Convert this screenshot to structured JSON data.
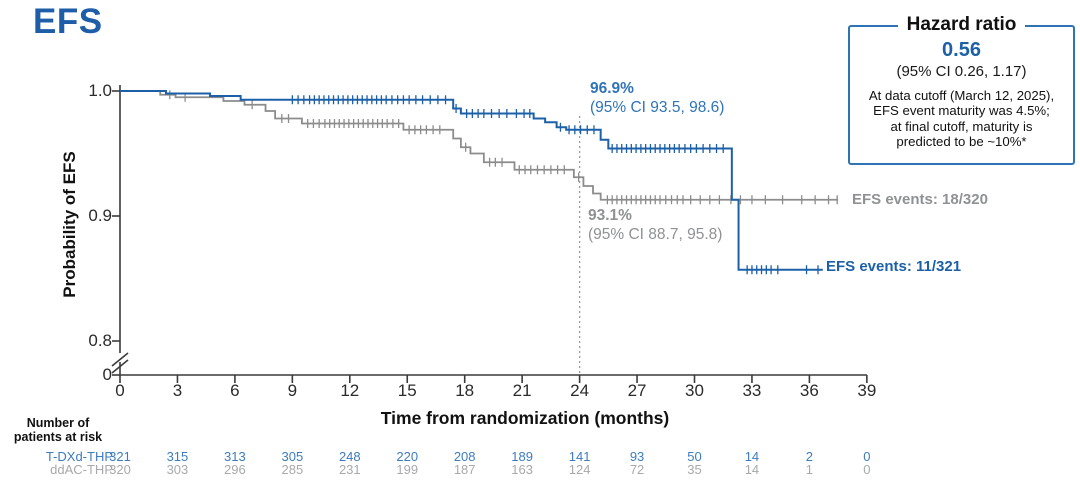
{
  "page": {
    "title": "EFS"
  },
  "hazard_box": {
    "title": "Hazard ratio",
    "value": "0.56",
    "ci": "(95% CI 0.26, 1.17)",
    "note_lines": [
      "At data cutoff (March 12, 2025),",
      "EFS event maturity was 4.5%;",
      "at final cutoff, maturity is",
      "predicted to be ~10%*"
    ]
  },
  "chart_data": {
    "type": "line",
    "subtype": "kaplan-meier",
    "title": "EFS",
    "xlabel": "Time from randomization (months)",
    "ylabel": "Probability of EFS",
    "xlim": [
      0,
      39
    ],
    "x_ticks": [
      0,
      3,
      6,
      9,
      12,
      15,
      18,
      21,
      24,
      27,
      30,
      33,
      36,
      39
    ],
    "y_ticks": [
      {
        "label": "1.0",
        "value": 1.0
      },
      {
        "label": "0.9",
        "value": 0.9
      },
      {
        "label": "0.8",
        "value": 0.8
      },
      {
        "label": "0",
        "value": 0
      }
    ],
    "axis_break": true,
    "landmark_line_x": 24,
    "series": [
      {
        "name": "T-DXd-THP",
        "color": "#1C60A8",
        "events_label": "EFS events: 11/321",
        "landmark_value": "96.9%",
        "landmark_ci": "(95% CI 93.5, 98.6)",
        "steps": [
          [
            0,
            1.0
          ],
          [
            2.4,
            0.998
          ],
          [
            4.7,
            0.996
          ],
          [
            6.3,
            0.993
          ],
          [
            17.4,
            0.986
          ],
          [
            17.8,
            0.982
          ],
          [
            21.6,
            0.978
          ],
          [
            22.2,
            0.975
          ],
          [
            22.8,
            0.971
          ],
          [
            23.3,
            0.969
          ],
          [
            25.1,
            0.961
          ],
          [
            25.5,
            0.954
          ],
          [
            31.95,
            0.913
          ],
          [
            32.3,
            0.857
          ]
        ],
        "end": 36.7,
        "censor_times": [
          9.0,
          9.3,
          9.6,
          9.9,
          10.15,
          10.4,
          10.65,
          10.9,
          11.15,
          11.4,
          11.65,
          11.9,
          12.15,
          12.4,
          12.65,
          12.9,
          13.15,
          13.4,
          13.65,
          13.9,
          14.2,
          14.5,
          14.8,
          15.1,
          15.45,
          15.8,
          16.2,
          16.6,
          17.0,
          17.55,
          18.1,
          18.4,
          18.7,
          19.0,
          19.4,
          19.8,
          20.2,
          20.7,
          21.1,
          21.4,
          23.0,
          23.45,
          23.75,
          24.05,
          24.4,
          24.75,
          25.7,
          25.95,
          26.2,
          26.45,
          26.7,
          26.95,
          27.2,
          27.45,
          27.7,
          27.95,
          28.2,
          28.45,
          28.7,
          28.95,
          29.2,
          29.5,
          29.8,
          30.1,
          30.45,
          30.8,
          31.15,
          31.5,
          32.75,
          33.0,
          33.25,
          33.5,
          33.75,
          34.0,
          34.35,
          35.85,
          36.45
        ]
      },
      {
        "name": "ddAC-THP",
        "color": "#8C8C8C",
        "events_label": "EFS events: 18/320",
        "landmark_value": "93.1%",
        "landmark_ci": "(95% CI 88.7, 95.8)",
        "steps": [
          [
            0,
            1.0
          ],
          [
            2.1,
            0.997
          ],
          [
            2.9,
            0.995
          ],
          [
            5.4,
            0.992
          ],
          [
            6.5,
            0.989
          ],
          [
            7.6,
            0.984
          ],
          [
            8.1,
            0.978
          ],
          [
            9.5,
            0.974
          ],
          [
            14.8,
            0.969
          ],
          [
            17.4,
            0.962
          ],
          [
            17.8,
            0.955
          ],
          [
            18.3,
            0.95
          ],
          [
            19.0,
            0.943
          ],
          [
            20.6,
            0.937
          ],
          [
            23.7,
            0.931
          ],
          [
            24.2,
            0.924
          ],
          [
            24.7,
            0.918
          ],
          [
            25.1,
            0.913
          ]
        ],
        "end": 37.5,
        "censor_times": [
          2.6,
          3.4,
          6.9,
          8.45,
          8.8,
          9.8,
          10.1,
          10.4,
          10.7,
          10.95,
          11.2,
          11.45,
          11.7,
          11.95,
          12.2,
          12.45,
          12.7,
          12.95,
          13.2,
          13.45,
          13.7,
          13.95,
          14.25,
          14.55,
          15.1,
          15.4,
          15.7,
          16.0,
          16.35,
          16.7,
          18.05,
          19.3,
          19.6,
          19.95,
          20.85,
          21.15,
          21.45,
          21.8,
          22.15,
          22.5,
          22.85,
          23.2,
          23.95,
          25.45,
          25.7,
          25.95,
          26.2,
          26.45,
          26.7,
          26.95,
          27.2,
          27.45,
          27.7,
          27.95,
          28.2,
          28.5,
          28.8,
          29.1,
          29.4,
          29.8,
          30.3,
          30.8,
          31.3,
          31.9,
          32.4,
          33.0,
          33.7,
          34.6,
          35.6,
          36.3,
          37.0,
          37.45
        ]
      }
    ],
    "risk_table": {
      "header_lines": [
        "Number of",
        "patients at risk"
      ],
      "rows": [
        {
          "label": "T-DXd-THP",
          "color": "#3D7CBF",
          "values": [
            321,
            315,
            313,
            305,
            248,
            220,
            208,
            189,
            141,
            93,
            50,
            14,
            2,
            0
          ]
        },
        {
          "label": "ddAC-THP",
          "color": "#A7A9AC",
          "values": [
            320,
            303,
            296,
            285,
            231,
            199,
            187,
            163,
            124,
            72,
            35,
            14,
            1,
            0
          ]
        }
      ]
    }
  }
}
